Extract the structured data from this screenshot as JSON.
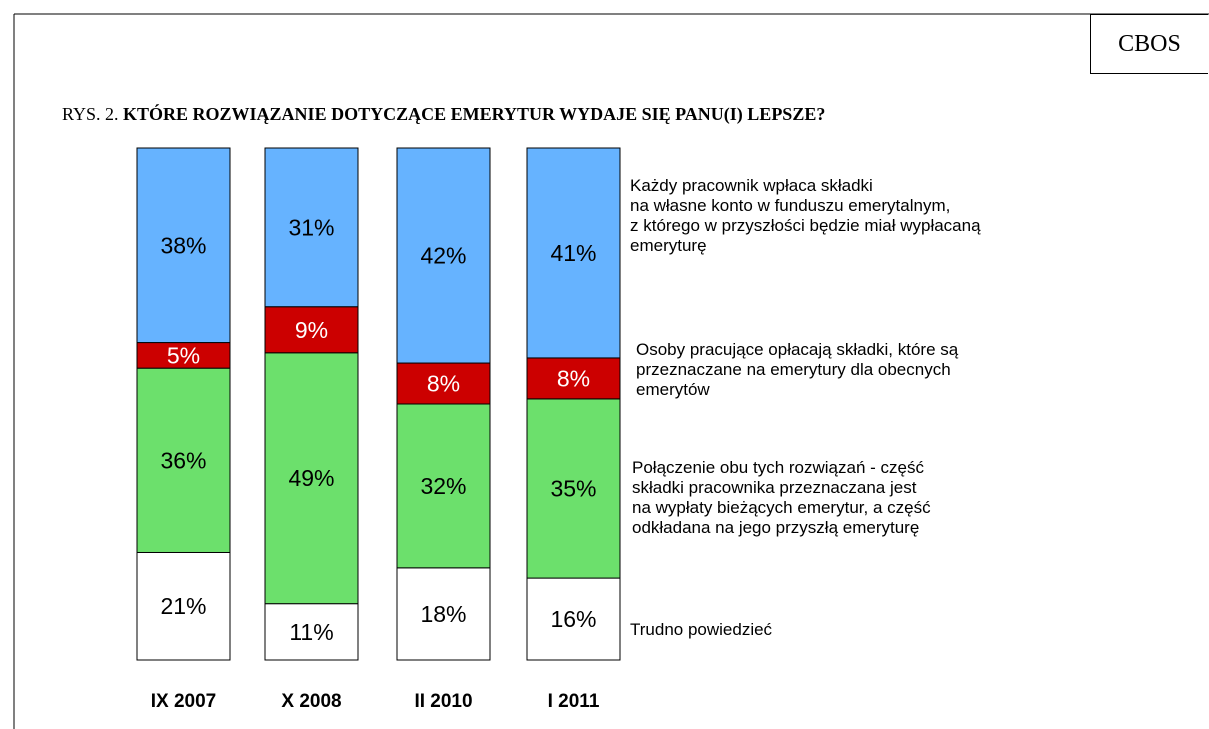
{
  "chart_data": {
    "type": "stacked_bar",
    "source": "CBOS",
    "figure_label": "RYS. 2.",
    "title": "KTÓRE ROZWIĄZANIE DOTYCZĄCE EMERYTUR WYDAJE SIĘ PANU(I) LEPSZE?",
    "categories": [
      "IX 2007",
      "X 2008",
      "II 2010",
      "I 2011"
    ],
    "ylim": [
      0,
      100
    ],
    "series": [
      {
        "name": "Trudno powiedzieć",
        "color": "#ffffff",
        "values": [
          21,
          11,
          18,
          16
        ],
        "value_labels": [
          "21%",
          "11%",
          "18%",
          "16%"
        ]
      },
      {
        "name": "Połączenie obu tych rozwiązań - część\nskładki pracownika przeznaczana jest\nna wypłaty bieżących emerytur, a część\nodkładana na jego przyszłą emeryturę",
        "color": "#6ce06c",
        "values": [
          36,
          49,
          32,
          35
        ],
        "value_labels": [
          "36%",
          "49%",
          "32%",
          "35%"
        ]
      },
      {
        "name": "Osoby pracujące opłacają składki, które są\nprzeznaczane na emerytury dla obecnych\nemerytów",
        "color": "#cc0000",
        "values": [
          5,
          9,
          8,
          8
        ],
        "value_labels": [
          "5%",
          "9%",
          "8%",
          "8%"
        ]
      },
      {
        "name": "Każdy pracownik wpłaca składki\nna własne konto w funduszu emerytalnym,\nz którego w przyszłości będzie miał wypłacaną\nemeryturę",
        "color": "#66b3ff",
        "values": [
          38,
          31,
          42,
          41
        ],
        "value_labels": [
          "38%",
          "31%",
          "42%",
          "41%"
        ]
      }
    ]
  }
}
